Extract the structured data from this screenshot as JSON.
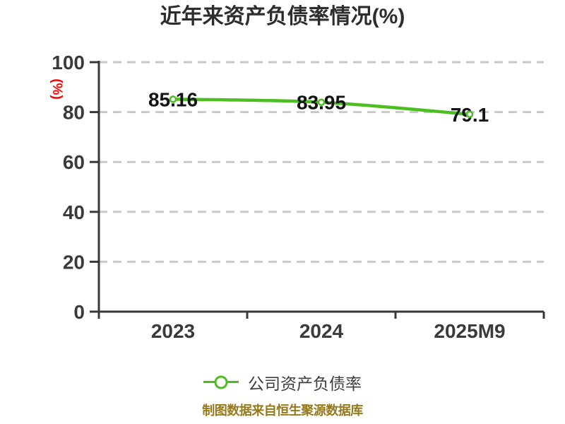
{
  "header": {
    "title": "近年来资产负债率情况(%)"
  },
  "y_axis": {
    "name": "(%)"
  },
  "legend": {
    "label": "公司资产负债率"
  },
  "footer": {
    "text": "制图数据来自恒生聚源数据库"
  },
  "colors": {
    "series_green": "#4cbe22",
    "marker_fill": "#ffffff",
    "grid": "#c9c9c9",
    "axis": "#38383c",
    "tick_label": "#3a3a3a",
    "data_label": "#141414",
    "title": "#2d2d2d",
    "y_name_red": "#fe0000",
    "footer_gold": "#97791d",
    "background": "#ffffff"
  },
  "chart_data": {
    "type": "line",
    "title": "近年来资产负债率情况(%)",
    "categories": [
      "2023",
      "2024",
      "2025M9"
    ],
    "series": [
      {
        "name": "公司资产负债率",
        "values": [
          85.16,
          83.95,
          79.1
        ],
        "labels": [
          "85.16",
          "83.95",
          "79.1"
        ],
        "color": "#4cbe22",
        "marker": "white-filled-circle",
        "smooth": true
      }
    ],
    "xlabel": "",
    "ylabel": "(%)",
    "ylim": [
      0,
      100
    ],
    "y_ticks": [
      0,
      20,
      40,
      60,
      80,
      100
    ],
    "grid": "horizontal-dashed",
    "legend_position": "bottom",
    "source_note": "制图数据来自恒生聚源数据库"
  }
}
